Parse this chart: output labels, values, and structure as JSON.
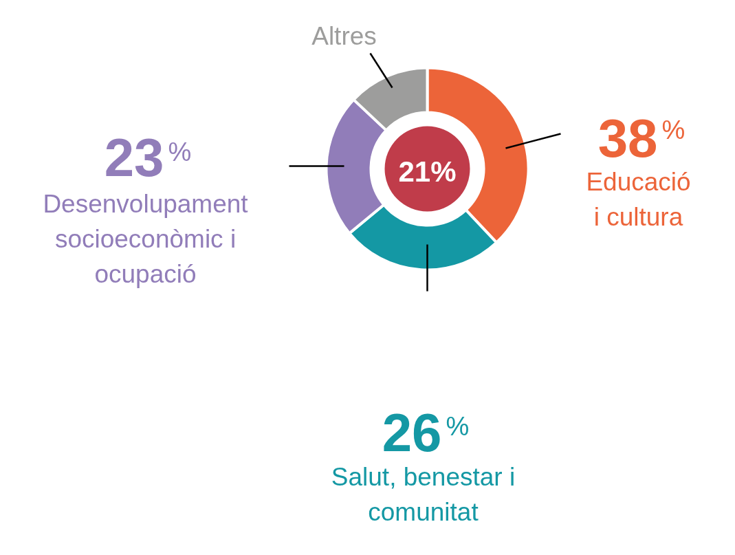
{
  "chart_data": {
    "type": "donut",
    "categories": [
      "Educació i cultura",
      "Salut, benestar i comunitat",
      "Desenvolupament socioeconòmic i ocupació",
      "Altres"
    ],
    "values": [
      38,
      26,
      23,
      13
    ],
    "colors": [
      "#ec6439",
      "#1498a4",
      "#917db9",
      "#9d9d9c"
    ],
    "value_labels": [
      "38%",
      "26%",
      "23%",
      null
    ],
    "annotations": [
      "21%"
    ]
  }
}
